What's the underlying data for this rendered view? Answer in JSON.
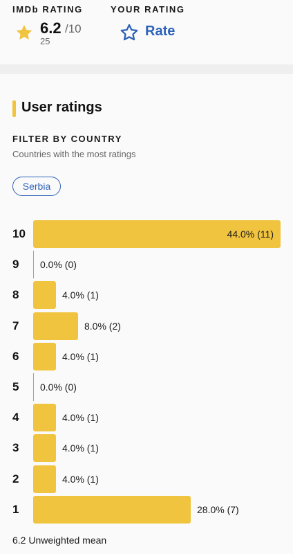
{
  "header": {
    "imdb_label": "IMDb RATING",
    "rating": "6.2",
    "rating_max": "/10",
    "vote_count": "25",
    "your_rating_label": "YOUR RATING",
    "rate_label": "Rate"
  },
  "section": {
    "title": "User ratings",
    "filter_heading": "FILTER BY COUNTRY",
    "filter_sub": "Countries with the most ratings",
    "country": "Serbia"
  },
  "colors": {
    "accent": "#f0c43f",
    "link": "#2e63b8"
  },
  "chart_data": {
    "type": "bar",
    "orientation": "horizontal",
    "categories": [
      "10",
      "9",
      "8",
      "7",
      "6",
      "5",
      "4",
      "3",
      "2",
      "1"
    ],
    "values": [
      44.0,
      0.0,
      4.0,
      8.0,
      4.0,
      0.0,
      4.0,
      4.0,
      4.0,
      28.0
    ],
    "counts": [
      11,
      0,
      1,
      2,
      1,
      0,
      1,
      1,
      1,
      7
    ],
    "data_labels": [
      "44.0% (11)",
      "0.0% (0)",
      "4.0% (1)",
      "8.0% (2)",
      "4.0% (1)",
      "0.0% (0)",
      "4.0% (1)",
      "4.0% (1)",
      "4.0% (1)",
      "28.0% (7)"
    ]
  },
  "footer": {
    "mean_text": "6.2 Unweighted mean"
  }
}
